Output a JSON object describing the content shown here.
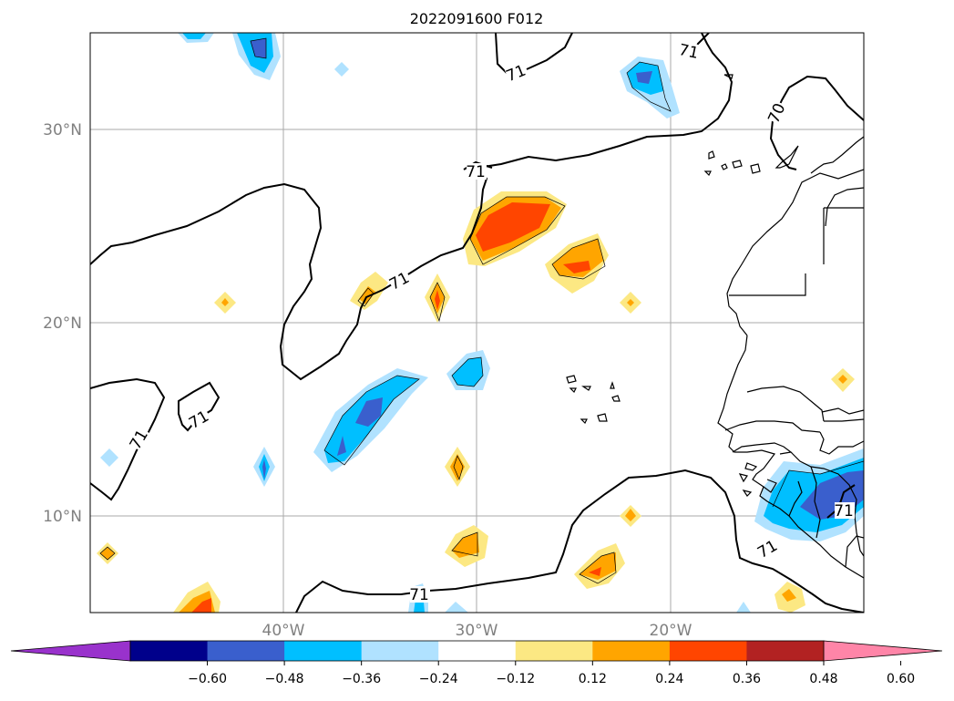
{
  "map": {
    "title": "2022091600 F012",
    "lat_labels": [
      "30°N",
      "20°N",
      "10°N"
    ],
    "lon_labels": [
      "40°W",
      "30°W",
      "20°W"
    ],
    "contour_labels": [
      "71",
      "71",
      "70",
      "71",
      "71",
      "71",
      "71",
      "71",
      "71",
      "71",
      "71"
    ],
    "extent": {
      "lon": [
        -50,
        -10
      ],
      "lat": [
        5,
        35
      ]
    },
    "gridlines": true
  },
  "colorbar": {
    "ticks": [
      "−0.60",
      "−0.48",
      "−0.36",
      "−0.24",
      "−0.12",
      "0.12",
      "0.24",
      "0.36",
      "0.48",
      "0.60"
    ],
    "colors": [
      "#9932cc",
      "#00008b",
      "#3a5fcd",
      "#00bfff",
      "#b0e2ff",
      "#ffffff",
      "#fce883",
      "#ffa500",
      "#ff4500",
      "#b22222",
      "#ff85a8"
    ],
    "extend": "both"
  },
  "colors": {
    "contour": "#000000",
    "grid": "#aaaaaa",
    "tick_label": "#808080"
  }
}
